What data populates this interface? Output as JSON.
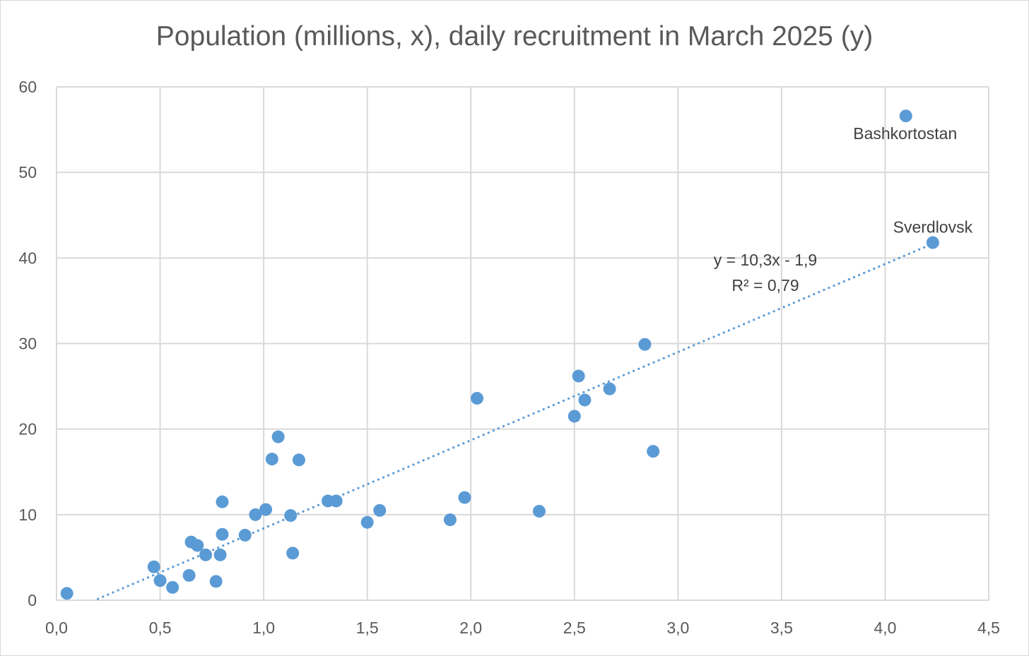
{
  "chart_data": {
    "type": "scatter",
    "title": "Population (millions, x), daily recruitment in March 2025 (y)",
    "xlabel": "",
    "ylabel": "",
    "xlim": [
      0,
      4.5
    ],
    "ylim": [
      0,
      60
    ],
    "x_ticks": [
      "0,0",
      "0,5",
      "1,0",
      "1,5",
      "2,0",
      "2,5",
      "3,0",
      "3,5",
      "4,0",
      "4,5"
    ],
    "y_ticks": [
      "0",
      "10",
      "20",
      "30",
      "40",
      "50",
      "60"
    ],
    "grid": true,
    "marker_color": "#5b9bd5",
    "series": [
      {
        "points": [
          [
            0.05,
            0.8
          ],
          [
            0.47,
            3.9
          ],
          [
            0.5,
            2.3
          ],
          [
            0.56,
            1.5
          ],
          [
            0.64,
            2.9
          ],
          [
            0.65,
            6.8
          ],
          [
            0.68,
            6.4
          ],
          [
            0.72,
            5.3
          ],
          [
            0.77,
            2.2
          ],
          [
            0.79,
            5.3
          ],
          [
            0.8,
            7.7
          ],
          [
            0.8,
            11.5
          ],
          [
            0.91,
            7.6
          ],
          [
            0.96,
            10.0
          ],
          [
            1.01,
            10.6
          ],
          [
            1.04,
            16.5
          ],
          [
            1.07,
            19.1
          ],
          [
            1.13,
            9.9
          ],
          [
            1.14,
            5.5
          ],
          [
            1.17,
            16.4
          ],
          [
            1.31,
            11.6
          ],
          [
            1.35,
            11.6
          ],
          [
            1.5,
            9.1
          ],
          [
            1.56,
            10.5
          ],
          [
            1.9,
            9.4
          ],
          [
            1.97,
            12.0
          ],
          [
            2.03,
            23.6
          ],
          [
            2.33,
            10.4
          ],
          [
            2.5,
            21.5
          ],
          [
            2.52,
            26.2
          ],
          [
            2.55,
            23.4
          ],
          [
            2.67,
            24.7
          ],
          [
            2.84,
            29.9
          ],
          [
            2.88,
            17.4
          ],
          [
            4.1,
            56.6
          ],
          [
            4.23,
            41.8
          ]
        ]
      }
    ],
    "point_labels": [
      {
        "text": "Bashkortostan",
        "x": 4.1,
        "y": 56.6
      },
      {
        "text": "Sverdlovsk",
        "x": 4.23,
        "y": 41.8
      }
    ],
    "trendline": {
      "type": "linear",
      "slope": 10.3,
      "intercept": -1.9,
      "x_range": [
        0.2,
        4.23
      ],
      "style": "dotted",
      "equation_label": "y = 10,3x - 1,9",
      "r2_label": "R² = 0,79"
    }
  }
}
